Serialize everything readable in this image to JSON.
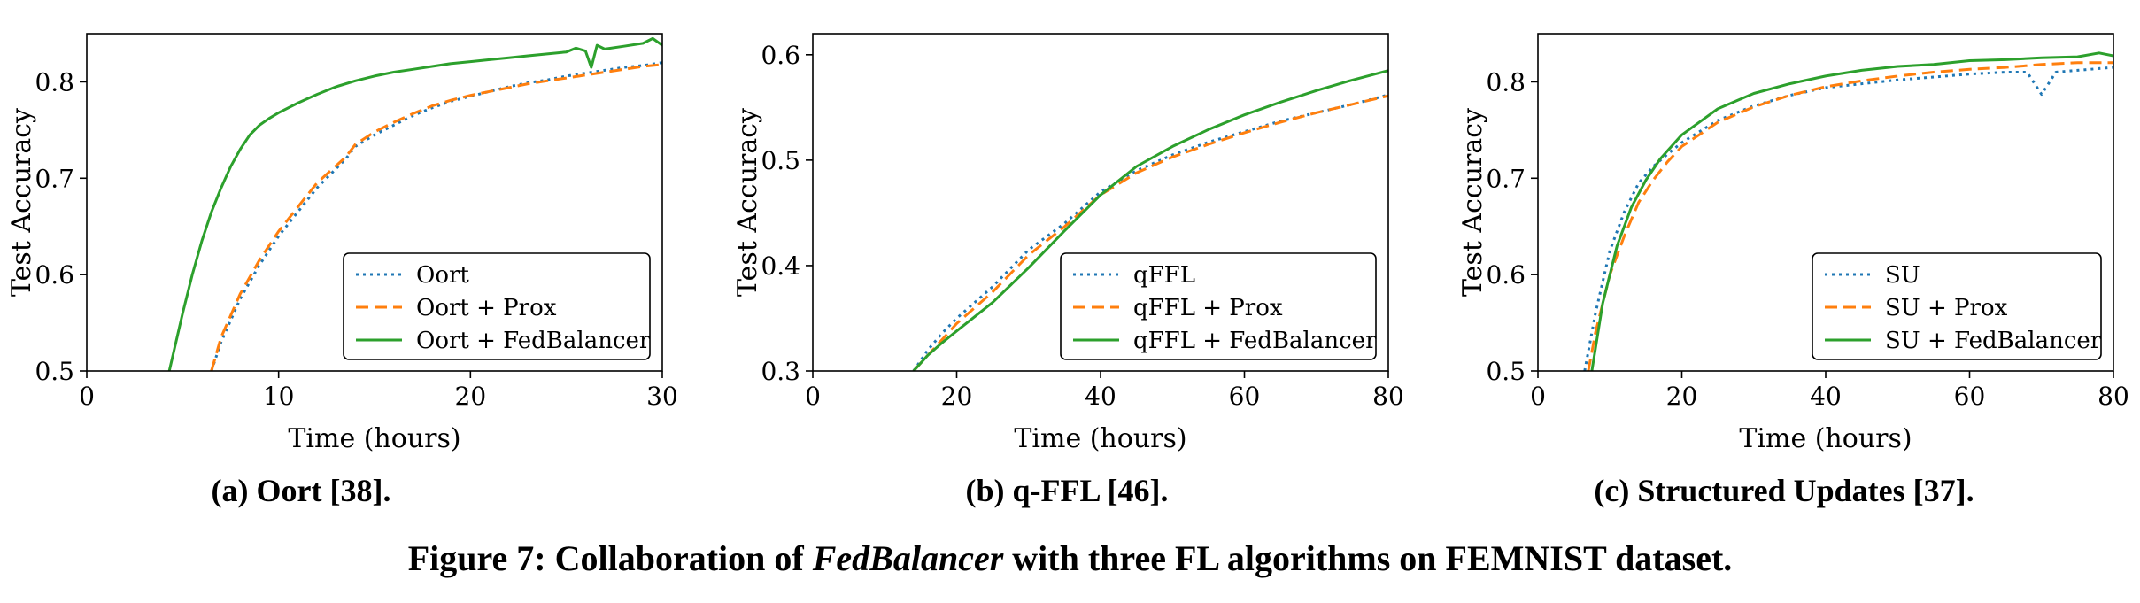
{
  "chart_data": [
    {
      "type": "line",
      "xlabel": "Time (hours)",
      "ylabel": "Test Accuracy",
      "xlim": [
        0,
        30
      ],
      "ylim": [
        0.5,
        0.85
      ],
      "xticks": [
        0,
        10,
        20,
        30
      ],
      "yticks": [
        0.5,
        0.6,
        0.7,
        0.8
      ],
      "legend_position": "bottom-right",
      "series": [
        {
          "name": "Oort",
          "color": "#1f77b4",
          "dash": "dotted",
          "x": [
            6.5,
            7,
            8,
            9,
            10,
            11,
            12,
            13,
            13.5,
            14,
            15,
            16,
            17,
            18,
            19,
            20,
            21,
            22,
            23,
            24,
            25,
            26,
            27,
            28,
            29,
            30
          ],
          "y": [
            0.5,
            0.53,
            0.575,
            0.61,
            0.64,
            0.665,
            0.69,
            0.71,
            0.72,
            0.733,
            0.745,
            0.755,
            0.765,
            0.773,
            0.78,
            0.785,
            0.79,
            0.795,
            0.799,
            0.802,
            0.806,
            0.809,
            0.812,
            0.815,
            0.817,
            0.82
          ]
        },
        {
          "name": "Oort + Prox",
          "color": "#ff7f0e",
          "dash": "dashed",
          "x": [
            6.5,
            7,
            8,
            9,
            10,
            11,
            12,
            13,
            13.5,
            14,
            15,
            16,
            17,
            18,
            19,
            20,
            21,
            22,
            23,
            24,
            25,
            26,
            27,
            28,
            29,
            30
          ],
          "y": [
            0.5,
            0.535,
            0.58,
            0.615,
            0.645,
            0.67,
            0.695,
            0.713,
            0.722,
            0.735,
            0.748,
            0.758,
            0.767,
            0.775,
            0.781,
            0.786,
            0.79,
            0.794,
            0.798,
            0.801,
            0.804,
            0.807,
            0.81,
            0.813,
            0.816,
            0.818
          ]
        },
        {
          "name": "Oort + FedBalancer",
          "color": "#2ca02c",
          "dash": "solid",
          "x": [
            4.3,
            5,
            5.5,
            6,
            6.5,
            7,
            7.5,
            8,
            8.5,
            9,
            9.5,
            10,
            11,
            12,
            13,
            14,
            15,
            16,
            17,
            18,
            19,
            20,
            21,
            22,
            23,
            24,
            25,
            25.5,
            26,
            26.3,
            26.6,
            27,
            28,
            29,
            29.5,
            30
          ],
          "y": [
            0.5,
            0.56,
            0.6,
            0.635,
            0.665,
            0.69,
            0.712,
            0.73,
            0.745,
            0.755,
            0.762,
            0.768,
            0.778,
            0.787,
            0.795,
            0.801,
            0.806,
            0.81,
            0.813,
            0.816,
            0.819,
            0.821,
            0.823,
            0.825,
            0.827,
            0.829,
            0.831,
            0.835,
            0.832,
            0.815,
            0.838,
            0.834,
            0.837,
            0.84,
            0.845,
            0.838
          ]
        }
      ]
    },
    {
      "type": "line",
      "xlabel": "Time (hours)",
      "ylabel": "Test Accuracy",
      "xlim": [
        0,
        80
      ],
      "ylim": [
        0.3,
        0.62
      ],
      "xticks": [
        0,
        20,
        40,
        60,
        80
      ],
      "yticks": [
        0.3,
        0.4,
        0.5,
        0.6
      ],
      "legend_position": "bottom-right",
      "series": [
        {
          "name": "qFFL",
          "color": "#1f77b4",
          "dash": "dotted",
          "x": [
            14,
            16,
            18,
            20,
            25,
            30,
            35,
            40,
            45,
            50,
            55,
            60,
            65,
            70,
            75,
            80
          ],
          "y": [
            0.3,
            0.32,
            0.336,
            0.35,
            0.38,
            0.415,
            0.44,
            0.47,
            0.49,
            0.505,
            0.517,
            0.527,
            0.537,
            0.545,
            0.553,
            0.562
          ]
        },
        {
          "name": "qFFL + Prox",
          "color": "#ff7f0e",
          "dash": "dashed",
          "x": [
            14,
            16,
            18,
            20,
            25,
            30,
            35,
            40,
            45,
            50,
            55,
            60,
            65,
            70,
            75,
            80
          ],
          "y": [
            0.3,
            0.315,
            0.33,
            0.345,
            0.375,
            0.41,
            0.437,
            0.467,
            0.488,
            0.503,
            0.515,
            0.526,
            0.536,
            0.545,
            0.553,
            0.561
          ]
        },
        {
          "name": "qFFL + FedBalancer",
          "color": "#2ca02c",
          "dash": "solid",
          "x": [
            14,
            16,
            18,
            20,
            25,
            30,
            35,
            40,
            45,
            50,
            55,
            60,
            65,
            70,
            75,
            80
          ],
          "y": [
            0.3,
            0.315,
            0.327,
            0.338,
            0.365,
            0.398,
            0.433,
            0.467,
            0.494,
            0.513,
            0.529,
            0.543,
            0.555,
            0.566,
            0.576,
            0.585
          ]
        }
      ]
    },
    {
      "type": "line",
      "xlabel": "Time (hours)",
      "ylabel": "Test Accuracy",
      "xlim": [
        0,
        80
      ],
      "ylim": [
        0.5,
        0.85
      ],
      "xticks": [
        0,
        20,
        40,
        60,
        80
      ],
      "yticks": [
        0.5,
        0.6,
        0.7,
        0.8
      ],
      "legend_position": "bottom-right",
      "series": [
        {
          "name": "SU",
          "color": "#1f77b4",
          "dash": "dotted",
          "x": [
            6.5,
            8,
            10,
            12,
            14,
            16,
            18,
            20,
            25,
            30,
            35,
            40,
            45,
            50,
            55,
            60,
            65,
            68,
            70,
            72,
            75,
            80
          ],
          "y": [
            0.5,
            0.56,
            0.625,
            0.665,
            0.695,
            0.712,
            0.725,
            0.737,
            0.76,
            0.775,
            0.786,
            0.794,
            0.798,
            0.802,
            0.805,
            0.808,
            0.81,
            0.81,
            0.787,
            0.81,
            0.812,
            0.815
          ]
        },
        {
          "name": "SU + Prox",
          "color": "#ff7f0e",
          "dash": "dashed",
          "x": [
            7,
            8,
            10,
            12,
            14,
            16,
            18,
            20,
            25,
            30,
            35,
            40,
            45,
            50,
            55,
            60,
            65,
            70,
            75,
            80
          ],
          "y": [
            0.5,
            0.54,
            0.6,
            0.64,
            0.675,
            0.698,
            0.717,
            0.733,
            0.758,
            0.774,
            0.786,
            0.795,
            0.801,
            0.806,
            0.81,
            0.813,
            0.815,
            0.818,
            0.82,
            0.82
          ]
        },
        {
          "name": "SU + FedBalancer",
          "color": "#2ca02c",
          "dash": "solid",
          "x": [
            7.5,
            9,
            11,
            13,
            15,
            17,
            20,
            25,
            30,
            35,
            40,
            45,
            50,
            55,
            60,
            65,
            70,
            75,
            78,
            80
          ],
          "y": [
            0.5,
            0.57,
            0.63,
            0.67,
            0.698,
            0.72,
            0.745,
            0.772,
            0.788,
            0.798,
            0.806,
            0.812,
            0.816,
            0.818,
            0.822,
            0.823,
            0.825,
            0.826,
            0.83,
            0.827
          ]
        }
      ]
    }
  ],
  "captions": {
    "sub_a": "(a) Oort [38].",
    "sub_b": "(b) q-FFL [46].",
    "sub_c": "(c) Structured Updates [37].",
    "figure_prefix": "Figure 7: Collaboration of ",
    "figure_italic": "FedBalancer",
    "figure_suffix": " with three FL algorithms on FEMNIST dataset."
  }
}
